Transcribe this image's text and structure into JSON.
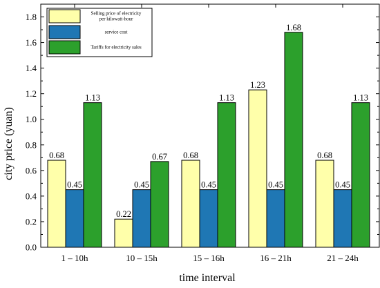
{
  "chart_data": {
    "type": "bar",
    "title": "",
    "xlabel": "time interval",
    "ylabel": "city price (yuan)",
    "ylim": [
      0,
      1.9
    ],
    "yticks": [
      0.0,
      0.2,
      0.4,
      0.6,
      0.8,
      1.0,
      1.2,
      1.4,
      1.6,
      1.8
    ],
    "ytick_labels": [
      "0.0",
      "0.2",
      "0.4",
      "0.6",
      "0.8",
      "1.0",
      "1.2",
      "1.4",
      "1.6",
      "1.8"
    ],
    "grid": false,
    "legend_position": "top-left",
    "categories": [
      "1 – 10h",
      "10 – 15h",
      "15 – 16h",
      "16 – 21h",
      "21 – 24h"
    ],
    "series": [
      {
        "name": "Selling price of electricity per kilowatt-hour",
        "name_lines": [
          "Selling price of electricity",
          "per kilowatt-hour"
        ],
        "color": "#FFFFAA",
        "values": [
          0.68,
          0.22,
          0.68,
          1.23,
          0.68
        ],
        "labels": [
          "0.68",
          "0.22",
          "0.68",
          "1.23",
          "0.68"
        ]
      },
      {
        "name": "service cost",
        "name_lines": [
          "service cost"
        ],
        "color": "#1F77B4",
        "values": [
          0.45,
          0.45,
          0.45,
          0.45,
          0.45
        ],
        "labels": [
          "0.45",
          "0.45",
          "0.45",
          "0.45",
          "0.45"
        ]
      },
      {
        "name": "Tariffs for electricity sales",
        "name_lines": [
          "Tariffs for electricity sales"
        ],
        "color": "#2CA02C",
        "values": [
          1.13,
          0.67,
          1.13,
          1.68,
          1.13
        ],
        "labels": [
          "1.13",
          "0.67",
          "1.13",
          "1.68",
          "1.13"
        ]
      }
    ]
  }
}
